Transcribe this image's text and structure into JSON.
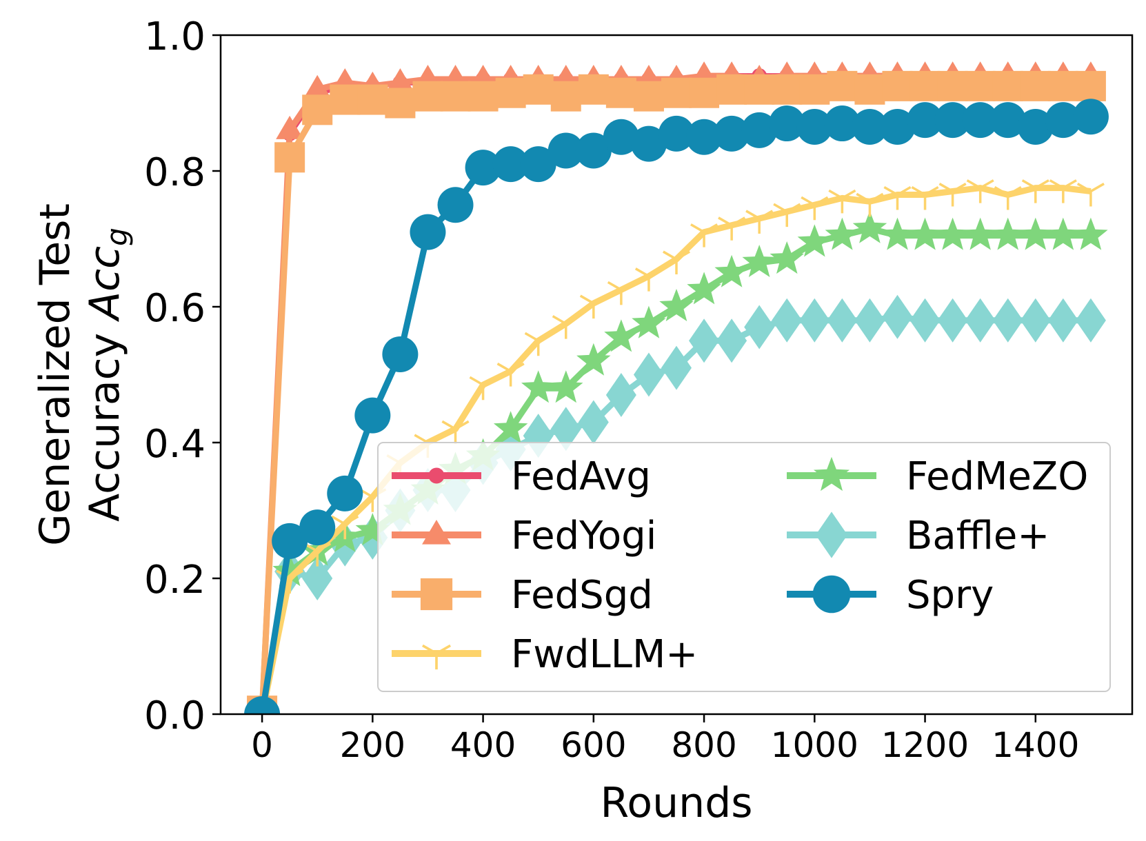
{
  "chart_data": {
    "type": "line",
    "xlabel": "Rounds",
    "ylabel_line1": "Generalized Test",
    "ylabel_line2_prefix": "Accuracy ",
    "ylabel_math": "Acc",
    "ylabel_math_sub": "g",
    "xlim": [
      -75,
      1575
    ],
    "ylim": [
      0,
      1.0
    ],
    "xticks": [
      0,
      200,
      400,
      600,
      800,
      1000,
      1200,
      1400
    ],
    "yticks": [
      0.0,
      0.2,
      0.4,
      0.6,
      0.8,
      1.0
    ],
    "xtick_labels": [
      "0",
      "200",
      "400",
      "600",
      "800",
      "1000",
      "1200",
      "1400"
    ],
    "ytick_labels": [
      "0.0",
      "0.2",
      "0.4",
      "0.6",
      "0.8",
      "1.0"
    ],
    "grid": false,
    "legend": {
      "position": "lower-right",
      "columns": 2
    },
    "x": [
      0,
      50,
      100,
      150,
      200,
      250,
      300,
      350,
      400,
      450,
      500,
      550,
      600,
      650,
      700,
      750,
      800,
      850,
      900,
      950,
      1000,
      1050,
      1100,
      1150,
      1200,
      1250,
      1300,
      1350,
      1400,
      1450,
      1500
    ],
    "series": [
      {
        "name": "FedAvg",
        "color": "#ea4c6e",
        "marker": "circle",
        "values": [
          0.0,
          0.855,
          0.915,
          0.925,
          0.925,
          0.93,
          0.93,
          0.93,
          0.935,
          0.935,
          0.935,
          0.935,
          0.935,
          0.935,
          0.935,
          0.935,
          0.935,
          0.94,
          0.94,
          0.94,
          0.94,
          0.94,
          0.94,
          0.94,
          0.94,
          0.94,
          0.94,
          0.94,
          0.94,
          0.94,
          0.94
        ]
      },
      {
        "name": "FedYogi",
        "color": "#f68b6a",
        "marker": "triangle",
        "values": [
          0.0,
          0.86,
          0.92,
          0.93,
          0.925,
          0.93,
          0.935,
          0.935,
          0.935,
          0.935,
          0.935,
          0.935,
          0.935,
          0.935,
          0.935,
          0.935,
          0.94,
          0.94,
          0.935,
          0.94,
          0.94,
          0.94,
          0.94,
          0.94,
          0.94,
          0.94,
          0.94,
          0.94,
          0.94,
          0.94,
          0.94
        ]
      },
      {
        "name": "FedSgd",
        "color": "#f9ae6b",
        "marker": "square",
        "values": [
          0.005,
          0.82,
          0.89,
          0.905,
          0.905,
          0.9,
          0.91,
          0.91,
          0.91,
          0.915,
          0.92,
          0.91,
          0.92,
          0.915,
          0.91,
          0.915,
          0.915,
          0.92,
          0.92,
          0.92,
          0.92,
          0.925,
          0.92,
          0.925,
          0.925,
          0.925,
          0.925,
          0.925,
          0.925,
          0.925,
          0.925
        ]
      },
      {
        "name": "FwdLLM+",
        "color": "#fdd36b",
        "marker": "tri_down",
        "values": [
          0.0,
          0.2,
          0.24,
          0.28,
          0.32,
          0.37,
          0.4,
          0.42,
          0.485,
          0.505,
          0.55,
          0.575,
          0.605,
          0.625,
          0.645,
          0.67,
          0.71,
          0.72,
          0.73,
          0.74,
          0.75,
          0.76,
          0.755,
          0.765,
          0.765,
          0.77,
          0.775,
          0.765,
          0.775,
          0.775,
          0.77
        ]
      },
      {
        "name": "FedMeZO",
        "color": "#7fd67c",
        "marker": "star",
        "values": [
          0.0,
          0.21,
          0.24,
          0.26,
          0.27,
          0.3,
          0.33,
          0.36,
          0.38,
          0.42,
          0.48,
          0.48,
          0.52,
          0.555,
          0.575,
          0.6,
          0.625,
          0.65,
          0.665,
          0.67,
          0.695,
          0.705,
          0.715,
          0.705,
          0.705,
          0.705,
          0.705,
          0.705,
          0.705,
          0.705,
          0.705
        ]
      },
      {
        "name": "Baffle+",
        "color": "#88d6d2",
        "marker": "diamond",
        "values": [
          0.0,
          0.21,
          0.2,
          0.25,
          0.26,
          0.3,
          0.33,
          0.33,
          0.37,
          0.39,
          0.41,
          0.42,
          0.43,
          0.47,
          0.5,
          0.51,
          0.55,
          0.55,
          0.57,
          0.58,
          0.58,
          0.58,
          0.58,
          0.585,
          0.58,
          0.58,
          0.58,
          0.58,
          0.58,
          0.58,
          0.58
        ]
      },
      {
        "name": "Spry",
        "color": "#1289b1",
        "marker": "circle",
        "values": [
          0.0,
          0.255,
          0.275,
          0.325,
          0.44,
          0.53,
          0.71,
          0.75,
          0.805,
          0.81,
          0.81,
          0.83,
          0.83,
          0.85,
          0.84,
          0.855,
          0.85,
          0.855,
          0.86,
          0.87,
          0.865,
          0.87,
          0.865,
          0.865,
          0.875,
          0.875,
          0.875,
          0.875,
          0.865,
          0.875,
          0.88
        ]
      }
    ]
  }
}
